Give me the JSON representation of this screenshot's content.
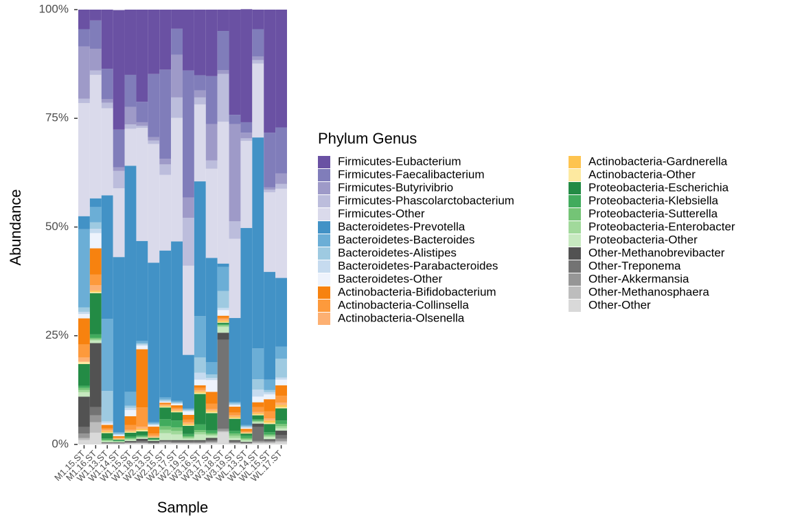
{
  "chart_data": {
    "type": "bar",
    "stacked": true,
    "x_label": "Sample",
    "y_label": "Abundance",
    "legend_title": "Phylum Genus",
    "categories": [
      "M1.15.ST",
      "M1.16.ST",
      "W1.13.ST",
      "W1.14.ST",
      "W1.15.ST",
      "W1.18.ST",
      "W2.13.ST",
      "W2.15.ST",
      "W2.17.ST",
      "W2.19.ST",
      "W3.16.ST",
      "W3.17.ST",
      "W3.18.ST",
      "W3.19.ST",
      "WL.13.ST",
      "WL.14.ST",
      "WL.15.ST",
      "WL.17.ST"
    ],
    "ylim": [
      0,
      100
    ],
    "yticks": [
      {
        "value": 0,
        "label": "0%"
      },
      {
        "value": 25,
        "label": "25%"
      },
      {
        "value": 50,
        "label": "50%"
      },
      {
        "value": 75,
        "label": "75%"
      },
      {
        "value": 100,
        "label": "100%"
      }
    ],
    "series": [
      {
        "name": "Firmicutes-Eubacterium",
        "color": "#6a51a3",
        "values": [
          4.5,
          2.5,
          13.6,
          27.5,
          15,
          21.2,
          14.8,
          13.8,
          4.4,
          14,
          15.1,
          15.3,
          4.9,
          24.2,
          26,
          4.5,
          28.3,
          27.1
        ]
      },
      {
        "name": "Firmicutes-Faecalibacterium",
        "color": "#807dba",
        "values": [
          4,
          6.5,
          7,
          8.7,
          7.4,
          4.7,
          14.5,
          20.5,
          6,
          29.2,
          3.5,
          11,
          9,
          2.1,
          2.4,
          6.3,
          12.6,
          10.6
        ]
      },
      {
        "name": "Firmicutes-Butyrivibrio",
        "color": "#9e9ac8",
        "values": [
          12,
          5,
          0.8,
          0.8,
          4,
          0.8,
          0.8,
          1.3,
          9.8,
          4.7,
          1.6,
          8.4,
          0.9,
          22.4,
          1.3,
          0.8,
          0.5,
          2.4
        ]
      },
      {
        "name": "Firmicutes-Phascolarctobacterium",
        "color": "#bcbddc",
        "values": [
          1,
          1,
          1.3,
          4,
          1,
          0.5,
          0.8,
          2.4,
          4.7,
          11,
          1.6,
          1.9,
          11,
          4,
          0.6,
          0.8,
          0.6,
          1.1
        ]
      },
      {
        "name": "Firmicutes-Other",
        "color": "#dadaeb",
        "values": [
          26,
          28.4,
          20,
          15.8,
          8.5,
          26,
          27.3,
          17.4,
          28.4,
          20.5,
          17.7,
          20.5,
          32.6,
          18.2,
          20,
          17,
          18.3,
          20.5
        ]
      },
      {
        "name": "Bacteroidetes-Prevotella",
        "color": "#4292c6",
        "values": [
          3,
          2,
          28.4,
          40.3,
          52,
          23,
          36.7,
          33.8,
          36.7,
          12.3,
          31,
          24,
          0.8,
          19.3,
          45.3,
          48.5,
          24.8,
          15.8
        ]
      },
      {
        "name": "Bacteroidetes-Bacteroides",
        "color": "#6baed6",
        "values": [
          18,
          3.5,
          16.6,
          0.3,
          3.2,
          0.5,
          0.3,
          0.5,
          0.3,
          0.3,
          9.5,
          2.8,
          5.5,
          0.3,
          0.3,
          7.1,
          2.4,
          2.8
        ]
      },
      {
        "name": "Bacteroidetes-Alistipes",
        "color": "#9ecae1",
        "values": [
          1,
          1.5,
          7,
          0.2,
          0.5,
          0.3,
          0.2,
          0.3,
          0.2,
          0.2,
          3.5,
          0.8,
          3.9,
          0.3,
          0.2,
          2.4,
          0.5,
          4.3
        ]
      },
      {
        "name": "Bacteroidetes-Parabacteroides",
        "color": "#c6dbef",
        "values": [
          0.5,
          1,
          0.5,
          0.2,
          0.5,
          0.3,
          0.2,
          0.2,
          0.2,
          0.2,
          1.6,
          0.5,
          0.5,
          0.2,
          0.2,
          1.6,
          0.5,
          0.5
        ]
      },
      {
        "name": "Bacteroidetes-Other",
        "color": "#eef3fc",
        "values": [
          1,
          3.5,
          0.3,
          0.2,
          1.4,
          0.8,
          0.3,
          0.2,
          0.3,
          0.8,
          1.3,
          2.7,
          1.3,
          0.3,
          0.2,
          1.3,
          1.1,
          1.3
        ]
      },
      {
        "name": "Actinobacteria-Bifidobacterium",
        "color": "#f7820f",
        "values": [
          6,
          6,
          0.8,
          0.3,
          2,
          13.4,
          1.6,
          0.3,
          0.6,
          1.1,
          0.6,
          2.7,
          0.5,
          1.4,
          0.5,
          1.1,
          2.8,
          2.4
        ]
      },
      {
        "name": "Actinobacteria-Collinsella",
        "color": "#fd9a3c",
        "values": [
          3,
          2.5,
          0.3,
          0.2,
          1.1,
          4.4,
          0.5,
          0.2,
          0.3,
          0.6,
          0.5,
          1.3,
          0.3,
          0.6,
          0.3,
          1.1,
          1.6,
          1.6
        ]
      },
      {
        "name": "Actinobacteria-Olsenella",
        "color": "#fdb072",
        "values": [
          1,
          1.2,
          0.3,
          0.1,
          0.3,
          0.5,
          0.3,
          0.2,
          0.3,
          0.3,
          0.3,
          0.3,
          0.3,
          0.3,
          0.1,
          0.3,
          0.5,
          0.5
        ]
      },
      {
        "name": "Actinobacteria-Gardnerella",
        "color": "#fec44f",
        "values": [
          0,
          0.3,
          0.3,
          0.1,
          0.2,
          0.3,
          0.1,
          0.2,
          0.2,
          0.3,
          0.3,
          0.3,
          0.3,
          0.3,
          0.1,
          0.3,
          0.5,
          0.5
        ]
      },
      {
        "name": "Actinobacteria-Other",
        "color": "#fde9a0",
        "values": [
          0.5,
          0.3,
          0.2,
          0.1,
          0.2,
          0.3,
          0.1,
          0.2,
          0.2,
          0.2,
          0.3,
          0.3,
          0.2,
          0.2,
          0.1,
          0.2,
          0.3,
          0.3
        ]
      },
      {
        "name": "Proteobacteria-Escherichia",
        "color": "#238b45",
        "values": [
          5,
          9.5,
          1.2,
          0.2,
          0.9,
          0.9,
          0.3,
          2.7,
          1.9,
          1.9,
          7,
          4,
          0.3,
          2.8,
          0.5,
          0.9,
          1.9,
          2.8
        ]
      },
      {
        "name": "Proteobacteria-Klebsiella",
        "color": "#41ab5d",
        "values": [
          0.5,
          0.8,
          0.3,
          0.1,
          0.3,
          0.2,
          0.1,
          1.6,
          1.6,
          0.5,
          1.3,
          0.6,
          0.2,
          0.6,
          0.5,
          0.3,
          0.5,
          0.8
        ]
      },
      {
        "name": "Proteobacteria-Sutterella",
        "color": "#74c476",
        "values": [
          0.5,
          0.3,
          0.2,
          0.1,
          0.2,
          0.2,
          0.1,
          0.8,
          0.8,
          0.3,
          0.5,
          0.3,
          0.2,
          0.5,
          0.3,
          0.2,
          0.3,
          0.5
        ]
      },
      {
        "name": "Proteobacteria-Enterobacter",
        "color": "#a1d99b",
        "values": [
          0.5,
          0.3,
          0.2,
          0.1,
          0.2,
          0.2,
          0.1,
          0.8,
          0.8,
          0.3,
          0.5,
          0.3,
          0.3,
          0.5,
          0.3,
          0.2,
          0.3,
          0.5
        ]
      },
      {
        "name": "Proteobacteria-Other",
        "color": "#c7e9c0",
        "values": [
          1,
          0.6,
          0.2,
          0.1,
          0.3,
          0.2,
          0.1,
          1.6,
          1.3,
          0.3,
          1.3,
          0.5,
          1.3,
          0.5,
          0.3,
          0.3,
          0.5,
          0.5
        ]
      },
      {
        "name": "Other-Methanobrevibacter",
        "color": "#525252",
        "values": [
          7,
          14.7,
          0.1,
          0.1,
          0.2,
          0.5,
          0.3,
          0.2,
          0.3,
          0.3,
          0.3,
          0.5,
          1.6,
          0.3,
          0.2,
          0.8,
          0.3,
          1.1
        ]
      },
      {
        "name": "Other-Treponema",
        "color": "#737373",
        "values": [
          1.5,
          1.9,
          0.1,
          0.1,
          0.2,
          0.3,
          0.2,
          0.2,
          0.2,
          0.2,
          0.2,
          0.3,
          20.5,
          0.2,
          0.1,
          3.2,
          0.2,
          0.8
        ]
      },
      {
        "name": "Other-Akkermansia",
        "color": "#969696",
        "values": [
          1,
          1.6,
          0.1,
          0.1,
          0.1,
          0.2,
          0.1,
          0.2,
          0.2,
          0.2,
          0.2,
          0.2,
          0.5,
          0.2,
          0.1,
          0.3,
          0.2,
          0.5
        ]
      },
      {
        "name": "Other-Methanosphaera",
        "color": "#bdbdbd",
        "values": [
          0.5,
          2.4,
          0.1,
          0.1,
          0.1,
          0.1,
          0.1,
          0.2,
          0.1,
          0.1,
          0.1,
          0.2,
          0.3,
          0.1,
          0.1,
          0.2,
          0.2,
          0.3
        ]
      },
      {
        "name": "Other-Other",
        "color": "#d9d9d9",
        "values": [
          1,
          2.7,
          0.1,
          0.1,
          0.2,
          0.2,
          0.1,
          0.2,
          0.2,
          0.2,
          0.2,
          0.3,
          2.8,
          0.2,
          0.1,
          0.3,
          0.3,
          0.5
        ]
      }
    ]
  }
}
